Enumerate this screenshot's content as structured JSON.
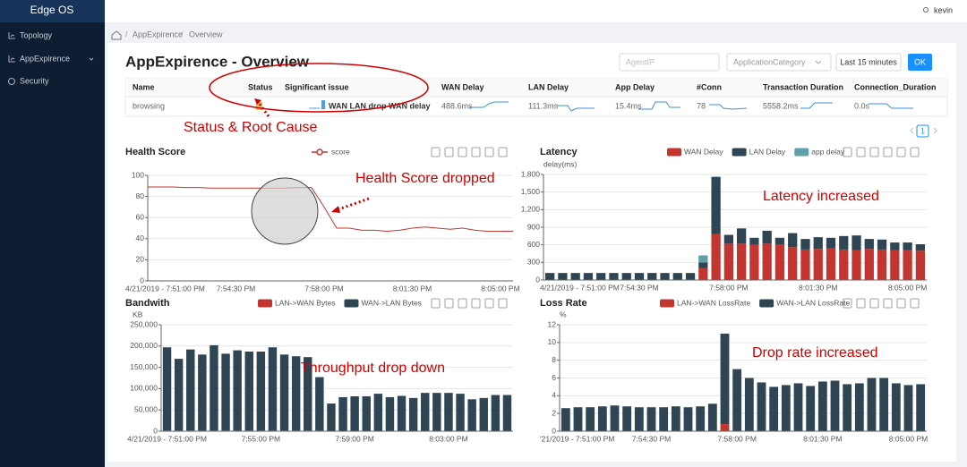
{
  "sidebar": {
    "brand": "Edge OS",
    "menu": [
      "Topology",
      "AppExpirence",
      "Security"
    ]
  },
  "topbar": {
    "user": "kevin"
  },
  "breadcrumb": [
    "AppExpirence",
    "Overview"
  ],
  "page": {
    "title": "AppExpirence - Overview",
    "agent_placeholder": "AgentIP",
    "category_placeholder": "ApplicationCategory",
    "time_range": "Last 15 minutes",
    "submit": "OK",
    "page_number": 1
  },
  "table": {
    "columns": [
      "Name",
      "Status",
      "Significant issue",
      "WAN Delay",
      "LAN Delay",
      "App Delay",
      "#Conn",
      "Transaction Duration",
      "Connection_Duration"
    ],
    "rows": [
      {
        "name": "browsing",
        "issue": "WAN LAN drop WAN delay",
        "wan_delay": "488.6ms",
        "lan_delay": "111.3ms",
        "app_delay": "15.4ms",
        "conn": 78,
        "transaction_duration": "5558.2ms",
        "connection_duration": "0.0s"
      }
    ]
  },
  "annotations": [
    "Status & Root Cause",
    "Health Score dropped",
    "Latency increased",
    "Throughput drop down",
    "Drop rate increased"
  ],
  "chart_data": [
    {
      "type": "line",
      "title": "Health Score",
      "categories": [
        "4/21/2019 - 7:51:00 PM",
        null,
        null,
        null,
        null,
        null,
        null,
        "7:54:30 PM",
        null,
        null,
        null,
        null,
        null,
        null,
        "7:58:00 PM",
        null,
        null,
        null,
        null,
        null,
        null,
        "8:01:30 PM",
        null,
        null,
        null,
        null,
        null,
        null,
        "8:05:00 PM",
        null
      ],
      "series": [
        {
          "name": "score",
          "color": "#c23531",
          "values": [
            89,
            89,
            89,
            88.5,
            88.5,
            88,
            88,
            88,
            88,
            88,
            88,
            88,
            88.5,
            88.5,
            70,
            50,
            50,
            48,
            48,
            47,
            48,
            50,
            51,
            50,
            49,
            50,
            48,
            47,
            47,
            47
          ]
        }
      ],
      "ylim": [
        0,
        100
      ],
      "yticks": [
        0,
        20,
        40,
        60,
        80,
        100
      ],
      "grid": true
    },
    {
      "type": "bar",
      "stacked": true,
      "title": "Latency",
      "y_label": "delay(ms)",
      "categories": [
        "4/21/2019 - 7:51:00 PM",
        null,
        null,
        null,
        null,
        null,
        null,
        "7:54:30 PM",
        null,
        null,
        null,
        null,
        null,
        null,
        "7:58:00 PM",
        null,
        null,
        null,
        null,
        null,
        null,
        "8:01:30 PM",
        null,
        null,
        null,
        null,
        null,
        null,
        "8:05:00 PM",
        null
      ],
      "series": [
        {
          "name": "WAN Delay",
          "color": "#c23531",
          "values": [
            0,
            0,
            0,
            0,
            0,
            0,
            0,
            0,
            0,
            0,
            0,
            0,
            200,
            780,
            620,
            620,
            600,
            620,
            600,
            560,
            520,
            530,
            540,
            520,
            510,
            530,
            520,
            510,
            510,
            500
          ]
        },
        {
          "name": "LAN Delay",
          "color": "#2f4554",
          "values": [
            120,
            120,
            120,
            120,
            120,
            120,
            120,
            120,
            120,
            120,
            120,
            120,
            100,
            980,
            150,
            260,
            120,
            220,
            120,
            240,
            180,
            200,
            180,
            230,
            250,
            170,
            170,
            130,
            130,
            110
          ]
        },
        {
          "name": "app delay",
          "color": "#61a0a8",
          "values": [
            0,
            0,
            0,
            0,
            0,
            0,
            0,
            0,
            0,
            0,
            0,
            0,
            120,
            0,
            0,
            0,
            0,
            0,
            0,
            0,
            0,
            0,
            0,
            0,
            0,
            0,
            0,
            0,
            0,
            0
          ]
        }
      ],
      "ylim": [
        0,
        1800
      ],
      "yticks": [
        0,
        300,
        600,
        900,
        {
          "value": 1200,
          "label": "1,200"
        },
        {
          "value": 1500,
          "label": "1,500"
        },
        {
          "value": 1800,
          "label": "1,800"
        }
      ],
      "grid": true
    },
    {
      "type": "bar",
      "stacked": true,
      "title": "Bandwith",
      "y_label": "KB",
      "categories": [
        "4/21/2019 - 7:51:00 PM",
        null,
        null,
        null,
        null,
        null,
        null,
        null,
        "7:55:00 PM",
        null,
        null,
        null,
        null,
        null,
        null,
        null,
        "7:59:00 PM",
        null,
        null,
        null,
        null,
        null,
        null,
        null,
        "8:03:00 PM",
        null,
        null,
        null,
        null,
        null
      ],
      "series": [
        {
          "name": "LAN->WAN Bytes",
          "color": "#c23531",
          "values": [
            2000,
            2000,
            2000,
            2000,
            2000,
            2000,
            2000,
            2000,
            2000,
            2000,
            2000,
            2000,
            2000,
            2000,
            0,
            0,
            0,
            0,
            0,
            0,
            0,
            0,
            0,
            0,
            0,
            0,
            0,
            0,
            0,
            0
          ]
        },
        {
          "name": "WAN->LAN Bytes",
          "color": "#2f4554",
          "values": [
            195000,
            168000,
            190000,
            178000,
            200000,
            180000,
            188000,
            185000,
            185000,
            195000,
            178000,
            174000,
            172000,
            125000,
            65000,
            80000,
            82000,
            82000,
            88000,
            80000,
            83000,
            78000,
            90000,
            90000,
            90000,
            88000,
            75000,
            78000,
            85000,
            85000
          ]
        }
      ],
      "ylim": [
        0,
        250000
      ],
      "yticks": [
        0,
        {
          "value": 50000,
          "label": "50,000"
        },
        {
          "value": 100000,
          "label": "100,000"
        },
        {
          "value": 150000,
          "label": "150,000"
        },
        {
          "value": 200000,
          "label": "200,000"
        },
        {
          "value": 250000,
          "label": "250,000"
        }
      ],
      "grid": true
    },
    {
      "type": "bar",
      "stacked": true,
      "title": "Loss Rate",
      "y_label": "%",
      "categories": [
        "'21/2019 - 7:51:00 PM",
        null,
        null,
        null,
        null,
        null,
        null,
        "7:54:30 PM",
        null,
        null,
        null,
        null,
        null,
        null,
        "7:58:00 PM",
        null,
        null,
        null,
        null,
        null,
        null,
        "8:01:30 PM",
        null,
        null,
        null,
        null,
        null,
        null,
        "8:05:00 PM",
        null
      ],
      "series": [
        {
          "name": "LAN->WAN LossRate",
          "color": "#c23531",
          "values": [
            0,
            0,
            0,
            0,
            0,
            0,
            0,
            0,
            0,
            0,
            0,
            0,
            0,
            0.8,
            0,
            0,
            0,
            0,
            0,
            0,
            0,
            0,
            0,
            0,
            0,
            0,
            0,
            0,
            0,
            0
          ]
        },
        {
          "name": "WAN->LAN LossRate",
          "color": "#2f4554",
          "values": [
            2.6,
            2.7,
            2.7,
            2.8,
            2.9,
            2.8,
            2.7,
            2.7,
            2.7,
            2.8,
            2.7,
            2.8,
            3.1,
            10.2,
            7,
            6,
            5.5,
            5,
            5.2,
            5.4,
            5.1,
            5.6,
            5.7,
            5.3,
            5.4,
            6,
            6,
            5.4,
            5.2,
            5.3
          ]
        }
      ],
      "ylim": [
        0,
        12
      ],
      "yticks": [
        0,
        2,
        4,
        6,
        8,
        10,
        12
      ],
      "grid": true
    }
  ]
}
